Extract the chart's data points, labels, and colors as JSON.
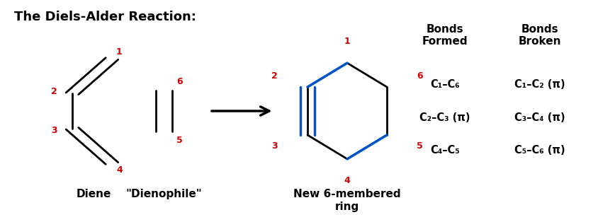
{
  "title": "The Diels-Alder Reaction:",
  "title_fontsize": 13,
  "bg_color": "#ffffff",
  "red_color": "#cc0000",
  "black_color": "#000000",
  "blue_color": "#0055cc",
  "bonds_formed_header": "Bonds\nFormed",
  "bonds_broken_header": "Bonds\nBroken",
  "bonds_formed": [
    "C₁–C₆",
    "C₂–C₃ (π)",
    "C₄–C₅"
  ],
  "bonds_broken": [
    "C₁–C₂ (π)",
    "C₃–C₄ (π)",
    "C₅–C₆ (π)"
  ],
  "diene_label": "Diene",
  "dienophile_label": "\"Dienophile\"",
  "product_label": "New 6-membered\nring",
  "figsize": [
    8.68,
    3.14
  ],
  "dpi": 100
}
